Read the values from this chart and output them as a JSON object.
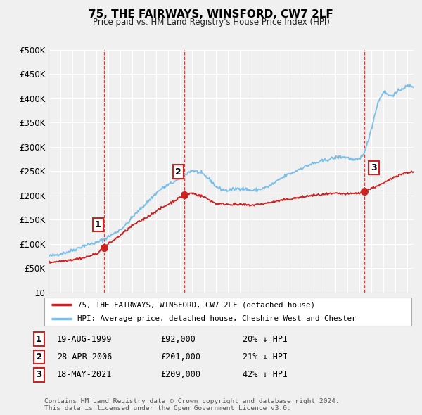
{
  "title": "75, THE FAIRWAYS, WINSFORD, CW7 2LF",
  "subtitle": "Price paid vs. HM Land Registry's House Price Index (HPI)",
  "ylim": [
    0,
    500000
  ],
  "yticks": [
    0,
    50000,
    100000,
    150000,
    200000,
    250000,
    300000,
    350000,
    400000,
    450000,
    500000
  ],
  "ytick_labels": [
    "£0",
    "£50K",
    "£100K",
    "£150K",
    "£200K",
    "£250K",
    "£300K",
    "£350K",
    "£400K",
    "£450K",
    "£500K"
  ],
  "hpi_color": "#7bbfe8",
  "sale_color": "#cc2222",
  "background_color": "#f0f0f0",
  "grid_color": "#ffffff",
  "legend_label_sale": "75, THE FAIRWAYS, WINSFORD, CW7 2LF (detached house)",
  "legend_label_hpi": "HPI: Average price, detached house, Cheshire West and Chester",
  "sales": [
    {
      "date_num": 1999.63,
      "price": 92000,
      "label": "1"
    },
    {
      "date_num": 2006.32,
      "price": 201000,
      "label": "2"
    },
    {
      "date_num": 2021.38,
      "price": 209000,
      "label": "3"
    }
  ],
  "table_rows": [
    {
      "num": "1",
      "date": "19-AUG-1999",
      "price": "£92,000",
      "hpi": "20% ↓ HPI"
    },
    {
      "num": "2",
      "date": "28-APR-2006",
      "price": "£201,000",
      "hpi": "21% ↓ HPI"
    },
    {
      "num": "3",
      "date": "18-MAY-2021",
      "price": "£209,000",
      "hpi": "42% ↓ HPI"
    }
  ],
  "footnote": "Contains HM Land Registry data © Crown copyright and database right 2024.\nThis data is licensed under the Open Government Licence v3.0.",
  "dashed_verticals": [
    1999.63,
    2006.32,
    2021.38
  ],
  "xmin": 1995,
  "xmax": 2025.5,
  "hpi_nodes_x": [
    1995.0,
    1995.5,
    1996.0,
    1996.5,
    1997.0,
    1997.5,
    1998.0,
    1998.5,
    1999.0,
    1999.5,
    2000.0,
    2000.5,
    2001.0,
    2001.5,
    2002.0,
    2002.5,
    2003.0,
    2003.5,
    2004.0,
    2004.5,
    2005.0,
    2005.5,
    2006.0,
    2006.5,
    2007.0,
    2007.5,
    2008.0,
    2008.5,
    2009.0,
    2009.5,
    2010.0,
    2010.5,
    2011.0,
    2011.5,
    2012.0,
    2012.5,
    2013.0,
    2013.5,
    2014.0,
    2014.5,
    2015.0,
    2015.5,
    2016.0,
    2016.5,
    2017.0,
    2017.5,
    2018.0,
    2018.5,
    2019.0,
    2019.5,
    2020.0,
    2020.5,
    2021.0,
    2021.5,
    2022.0,
    2022.5,
    2023.0,
    2023.5,
    2024.0,
    2024.5,
    2025.0
  ],
  "hpi_nodes_y": [
    75000,
    77000,
    80000,
    83000,
    87000,
    92000,
    97000,
    100000,
    103000,
    108000,
    115000,
    122000,
    130000,
    140000,
    155000,
    168000,
    180000,
    192000,
    205000,
    215000,
    222000,
    228000,
    235000,
    245000,
    252000,
    248000,
    242000,
    232000,
    218000,
    212000,
    210000,
    213000,
    215000,
    213000,
    210000,
    212000,
    215000,
    220000,
    228000,
    236000,
    243000,
    248000,
    255000,
    260000,
    265000,
    268000,
    272000,
    275000,
    278000,
    280000,
    278000,
    272000,
    275000,
    295000,
    340000,
    390000,
    415000,
    405000,
    410000,
    420000,
    425000
  ],
  "sale_nodes_x": [
    1995.0,
    1996.0,
    1997.0,
    1998.0,
    1999.0,
    1999.63,
    2000.0,
    2001.0,
    2002.0,
    2003.0,
    2004.0,
    2005.0,
    2006.0,
    2006.32,
    2007.0,
    2008.0,
    2009.0,
    2010.0,
    2011.0,
    2012.0,
    2013.0,
    2014.0,
    2015.0,
    2016.0,
    2017.0,
    2018.0,
    2019.0,
    2020.0,
    2021.0,
    2021.38,
    2022.0,
    2023.0,
    2024.0,
    2025.0
  ],
  "sale_nodes_y": [
    62000,
    65000,
    68000,
    72000,
    80000,
    92000,
    100000,
    118000,
    138000,
    152000,
    168000,
    182000,
    196000,
    201000,
    205000,
    197000,
    183000,
    182000,
    181000,
    180000,
    183000,
    188000,
    192000,
    196000,
    200000,
    202000,
    204000,
    203000,
    205000,
    209000,
    215000,
    225000,
    240000,
    248000
  ]
}
